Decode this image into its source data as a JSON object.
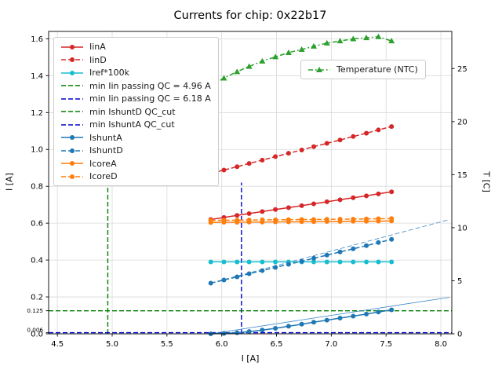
{
  "figure": {
    "title": "Currents for chip: 0x22b17",
    "xlabel": "I [A]",
    "ylabel_left": "I [A]",
    "ylabel_right": "T [C]"
  },
  "chart_data": {
    "type": "line",
    "title": "Currents for chip: 0x22b17",
    "xlabel": "I [A]",
    "ylabel": "I [A]",
    "ylabel_right": "T [C]",
    "grid": true,
    "legend_position": "upper left",
    "xlim": [
      4.42,
      8.1
    ],
    "ylim_left": [
      0,
      1.64
    ],
    "ylim_right": [
      0,
      28.5
    ],
    "x_ticks": [
      4.5,
      5.0,
      5.5,
      6.0,
      6.5,
      7.0,
      7.5,
      8.0
    ],
    "y_ticks_left": [
      0.0,
      0.2,
      0.4,
      0.6,
      0.8,
      1.0,
      1.2,
      1.4,
      1.6
    ],
    "y_ticks_left_extra": [
      {
        "value": 0.125,
        "label": "0.125"
      },
      {
        "value": 0.006,
        "label": "0.006"
      }
    ],
    "y_ticks_right": [
      0,
      5,
      10,
      15,
      20,
      25
    ],
    "ref_lines": [
      {
        "name": "min Iin passing QC = 4.96 A",
        "orient": "v",
        "x": 4.96,
        "y0": 0,
        "y1": 0.8,
        "color": "#008000",
        "dash": "dashed"
      },
      {
        "name": "min Iin passing QC = 6.18 A",
        "orient": "v",
        "x": 6.18,
        "y0": 0,
        "y1": 0.82,
        "color": "#0000cd",
        "dash": "dashed"
      },
      {
        "name": "min IshuntD QC_cut",
        "orient": "h",
        "y": 0.125,
        "color": "#008000",
        "dash": "dashed"
      },
      {
        "name": "min IshuntA QC_cut",
        "orient": "h",
        "y": 0.006,
        "color": "#0000cd",
        "dash": "dashed"
      }
    ],
    "series": [
      {
        "name": "IshuntA-fit",
        "axis": "left",
        "color": "#3a87c8",
        "dash": "solid",
        "marker": "none",
        "lw": 0.8,
        "x": [
          5.9,
          8.08
        ],
        "y": [
          0.0,
          0.198
        ]
      },
      {
        "name": "IshuntD-fit",
        "axis": "left",
        "color": "#3a87c8",
        "dash": "dashed",
        "marker": "none",
        "lw": 0.8,
        "x": [
          5.9,
          8.08
        ],
        "y": [
          0.275,
          0.62
        ]
      },
      {
        "name": "IinA",
        "axis": "left",
        "color": "#d62728",
        "dash": "solid",
        "marker": "circle",
        "lw": 1.5,
        "x": [
          5.9,
          6.02,
          6.14,
          6.25,
          6.37,
          6.49,
          6.61,
          6.73,
          6.84,
          6.96,
          7.08,
          7.2,
          7.32,
          7.43,
          7.55
        ],
        "y": [
          0.62,
          0.631,
          0.642,
          0.652,
          0.663,
          0.674,
          0.684,
          0.695,
          0.705,
          0.716,
          0.727,
          0.738,
          0.748,
          0.759,
          0.77
        ]
      },
      {
        "name": "IinD",
        "axis": "left",
        "color": "#d62728",
        "dash": "dashed",
        "marker": "circle",
        "lw": 1.5,
        "x": [
          5.9,
          6.02,
          6.14,
          6.25,
          6.37,
          6.49,
          6.61,
          6.73,
          6.84,
          6.96,
          7.08,
          7.2,
          7.32,
          7.43,
          7.55
        ],
        "y": [
          0.87,
          0.888,
          0.906,
          0.924,
          0.942,
          0.961,
          0.979,
          0.997,
          1.015,
          1.033,
          1.051,
          1.07,
          1.088,
          1.106,
          1.124
        ]
      },
      {
        "name": "Iref*100k",
        "axis": "left",
        "color": "#17becf",
        "dash": "solid",
        "marker": "circle",
        "lw": 1.5,
        "x": [
          5.9,
          6.02,
          6.14,
          6.25,
          6.37,
          6.49,
          6.61,
          6.73,
          6.84,
          6.96,
          7.08,
          7.2,
          7.32,
          7.43,
          7.55
        ],
        "y": [
          0.39,
          0.39,
          0.39,
          0.39,
          0.39,
          0.39,
          0.39,
          0.39,
          0.39,
          0.39,
          0.39,
          0.39,
          0.39,
          0.39,
          0.39
        ]
      },
      {
        "name": "IshuntA",
        "axis": "left",
        "color": "#1f77b4",
        "dash": "solid",
        "marker": "circle",
        "lw": 1.5,
        "x": [
          5.9,
          6.02,
          6.14,
          6.25,
          6.37,
          6.49,
          6.61,
          6.73,
          6.84,
          6.96,
          7.08,
          7.2,
          7.32,
          7.43,
          7.55
        ],
        "y": [
          0.0,
          0.002,
          0.006,
          0.012,
          0.02,
          0.03,
          0.041,
          0.052,
          0.063,
          0.074,
          0.085,
          0.096,
          0.107,
          0.118,
          0.13
        ]
      },
      {
        "name": "IshuntD",
        "axis": "left",
        "color": "#1f77b4",
        "dash": "dashed",
        "marker": "circle",
        "lw": 1.5,
        "x": [
          5.9,
          6.02,
          6.14,
          6.25,
          6.37,
          6.49,
          6.61,
          6.73,
          6.84,
          6.96,
          7.08,
          7.2,
          7.32,
          7.43,
          7.55
        ],
        "y": [
          0.275,
          0.292,
          0.309,
          0.326,
          0.343,
          0.36,
          0.377,
          0.393,
          0.41,
          0.427,
          0.444,
          0.461,
          0.478,
          0.495,
          0.512
        ]
      },
      {
        "name": "IcoreA",
        "axis": "left",
        "color": "#ff7f0e",
        "dash": "solid",
        "marker": "circle",
        "lw": 1.5,
        "x": [
          5.9,
          6.02,
          6.14,
          6.25,
          6.37,
          6.49,
          6.61,
          6.73,
          6.84,
          6.96,
          7.08,
          7.2,
          7.32,
          7.43,
          7.55
        ],
        "y": [
          0.604,
          0.605,
          0.605,
          0.606,
          0.606,
          0.607,
          0.607,
          0.608,
          0.608,
          0.609,
          0.609,
          0.61,
          0.61,
          0.611,
          0.612
        ]
      },
      {
        "name": "IcoreD",
        "axis": "left",
        "color": "#ff7f0e",
        "dash": "dashed",
        "marker": "circle",
        "lw": 1.5,
        "x": [
          5.9,
          6.02,
          6.14,
          6.25,
          6.37,
          6.49,
          6.61,
          6.73,
          6.84,
          6.96,
          7.08,
          7.2,
          7.32,
          7.43,
          7.55
        ],
        "y": [
          0.615,
          0.616,
          0.616,
          0.617,
          0.618,
          0.618,
          0.619,
          0.62,
          0.62,
          0.621,
          0.622,
          0.622,
          0.623,
          0.624,
          0.625
        ]
      },
      {
        "name": "Temperature (NTC)",
        "axis": "right",
        "color": "#2ca02c",
        "dash": "dashdot",
        "marker": "triangle",
        "lw": 1.5,
        "x": [
          5.9,
          6.02,
          6.14,
          6.25,
          6.37,
          6.49,
          6.61,
          6.73,
          6.84,
          6.96,
          7.08,
          7.2,
          7.32,
          7.43,
          7.55
        ],
        "y": [
          23.4,
          24.1,
          24.7,
          25.2,
          25.7,
          26.1,
          26.5,
          26.8,
          27.1,
          27.4,
          27.6,
          27.8,
          27.9,
          28.0,
          27.6
        ]
      }
    ],
    "legend": {
      "entries": [
        {
          "label": "IinA",
          "color": "#d62728",
          "dash": "solid",
          "marker": "circle"
        },
        {
          "label": "IinD",
          "color": "#d62728",
          "dash": "dashed",
          "marker": "circle"
        },
        {
          "label": "Iref*100k",
          "color": "#17becf",
          "dash": "solid",
          "marker": "circle"
        },
        {
          "label": "min Iin passing QC = 4.96 A",
          "color": "#008000",
          "dash": "dashed",
          "marker": "none"
        },
        {
          "label": "min Iin passing QC = 6.18 A",
          "color": "#0000cd",
          "dash": "dashed",
          "marker": "none"
        },
        {
          "label": "min IshuntD QC_cut",
          "color": "#008000",
          "dash": "dashed",
          "marker": "none"
        },
        {
          "label": "min IshuntA QC_cut",
          "color": "#0000cd",
          "dash": "dashed",
          "marker": "none"
        },
        {
          "label": "IshuntA",
          "color": "#1f77b4",
          "dash": "solid",
          "marker": "circle"
        },
        {
          "label": "IshuntD",
          "color": "#1f77b4",
          "dash": "dashed",
          "marker": "circle"
        },
        {
          "label": "IcoreA",
          "color": "#ff7f0e",
          "dash": "solid",
          "marker": "circle"
        },
        {
          "label": "IcoreD",
          "color": "#ff7f0e",
          "dash": "dashed",
          "marker": "circle"
        }
      ]
    },
    "legend2": {
      "label": "Temperature (NTC)",
      "color": "#2ca02c",
      "dash": "dashdot",
      "marker": "triangle"
    },
    "colors": {
      "grid": "#d9d9d9",
      "axis": "#000000",
      "background": "#ffffff"
    }
  }
}
